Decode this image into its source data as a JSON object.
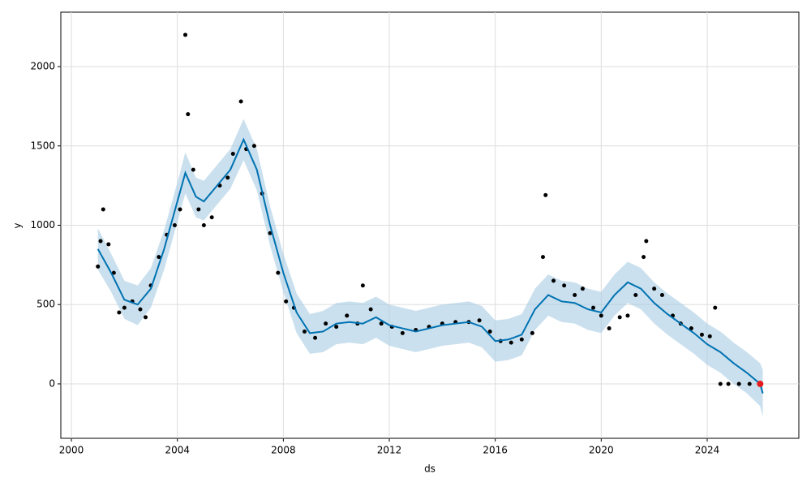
{
  "chart_data": {
    "type": "scatter",
    "xlabel": "ds",
    "ylabel": "y",
    "xlim": [
      1999.6,
      2027.46
    ],
    "ylim": [
      -343,
      2343
    ],
    "xticks": [
      2000,
      2004,
      2008,
      2012,
      2016,
      2020,
      2024
    ],
    "yticks": [
      0,
      500,
      1000,
      1500,
      2000
    ],
    "grid": true,
    "forecast": {
      "color": "#0072b2",
      "band_color": "#a6cbe3",
      "x": [
        2001.0,
        2001.5,
        2002.0,
        2002.5,
        2003.0,
        2003.5,
        2004.0,
        2004.3,
        2004.7,
        2005.0,
        2005.5,
        2006.0,
        2006.5,
        2007.0,
        2007.5,
        2008.0,
        2008.5,
        2009.0,
        2009.5,
        2010.0,
        2010.5,
        2011.0,
        2011.5,
        2012.0,
        2012.5,
        2013.0,
        2013.5,
        2014.0,
        2014.5,
        2015.0,
        2015.5,
        2016.0,
        2016.5,
        2017.0,
        2017.5,
        2018.0,
        2018.5,
        2019.0,
        2019.5,
        2020.0,
        2020.5,
        2021.0,
        2021.5,
        2022.0,
        2022.5,
        2023.0,
        2023.5,
        2024.0,
        2024.5,
        2025.0,
        2025.5,
        2026.0,
        2026.1
      ],
      "values": [
        850,
        700,
        530,
        500,
        600,
        850,
        1150,
        1330,
        1180,
        1150,
        1250,
        1350,
        1540,
        1350,
        1000,
        700,
        450,
        320,
        330,
        380,
        390,
        380,
        420,
        370,
        350,
        330,
        350,
        370,
        380,
        390,
        360,
        270,
        280,
        310,
        470,
        560,
        520,
        510,
        470,
        450,
        560,
        640,
        600,
        510,
        440,
        380,
        320,
        250,
        200,
        130,
        70,
        0,
        -60
      ],
      "lower": [
        720,
        580,
        410,
        370,
        480,
        720,
        1020,
        1200,
        1050,
        1030,
        1130,
        1230,
        1410,
        1220,
        870,
        580,
        320,
        190,
        200,
        250,
        260,
        250,
        290,
        240,
        220,
        200,
        220,
        240,
        250,
        260,
        230,
        140,
        150,
        180,
        340,
        430,
        390,
        380,
        340,
        320,
        430,
        510,
        470,
        380,
        310,
        250,
        190,
        120,
        70,
        0,
        -60,
        -140,
        -210
      ],
      "upper": [
        980,
        820,
        650,
        620,
        730,
        970,
        1270,
        1460,
        1300,
        1280,
        1380,
        1480,
        1670,
        1480,
        1120,
        820,
        570,
        440,
        460,
        510,
        520,
        510,
        550,
        500,
        480,
        460,
        480,
        500,
        510,
        520,
        490,
        400,
        410,
        440,
        600,
        690,
        650,
        640,
        600,
        580,
        690,
        770,
        730,
        640,
        570,
        510,
        450,
        380,
        330,
        260,
        200,
        130,
        90
      ]
    },
    "observed": {
      "color": "#000000",
      "x": [
        2001.0,
        2001.1,
        2001.2,
        2001.4,
        2001.6,
        2001.8,
        2002.0,
        2002.3,
        2002.6,
        2002.8,
        2003.0,
        2003.3,
        2003.6,
        2003.9,
        2004.1,
        2004.3,
        2004.4,
        2004.6,
        2004.8,
        2005.0,
        2005.3,
        2005.6,
        2005.9,
        2006.1,
        2006.4,
        2006.6,
        2006.9,
        2007.2,
        2007.5,
        2007.8,
        2008.1,
        2008.4,
        2008.8,
        2009.2,
        2009.6,
        2010.0,
        2010.4,
        2010.8,
        2011.0,
        2011.3,
        2011.7,
        2012.1,
        2012.5,
        2013.0,
        2013.5,
        2014.0,
        2014.5,
        2015.0,
        2015.4,
        2015.8,
        2016.2,
        2016.6,
        2017.0,
        2017.4,
        2017.8,
        2017.9,
        2018.2,
        2018.6,
        2019.0,
        2019.3,
        2019.7,
        2020.0,
        2020.3,
        2020.7,
        2021.0,
        2021.3,
        2021.6,
        2021.7,
        2022.0,
        2022.3,
        2022.7,
        2023.0,
        2023.4,
        2023.8,
        2024.1,
        2024.3,
        2024.5,
        2024.8,
        2025.2,
        2025.6,
        2026.0
      ],
      "values": [
        740,
        900,
        1100,
        880,
        700,
        450,
        480,
        520,
        470,
        420,
        620,
        800,
        940,
        1000,
        1100,
        2200,
        1700,
        1350,
        1100,
        1000,
        1050,
        1250,
        1300,
        1450,
        1780,
        1480,
        1500,
        1200,
        950,
        700,
        520,
        480,
        330,
        290,
        380,
        360,
        430,
        380,
        620,
        470,
        380,
        360,
        320,
        340,
        360,
        380,
        390,
        390,
        400,
        330,
        270,
        260,
        280,
        320,
        800,
        1190,
        650,
        620,
        560,
        600,
        480,
        430,
        350,
        420,
        430,
        560,
        800,
        900,
        600,
        560,
        430,
        380,
        350,
        310,
        300,
        480,
        0,
        0,
        0,
        0,
        0
      ]
    },
    "highlight": {
      "color": "#e41a1c",
      "x": [
        2026.0
      ],
      "values": [
        0
      ]
    }
  }
}
